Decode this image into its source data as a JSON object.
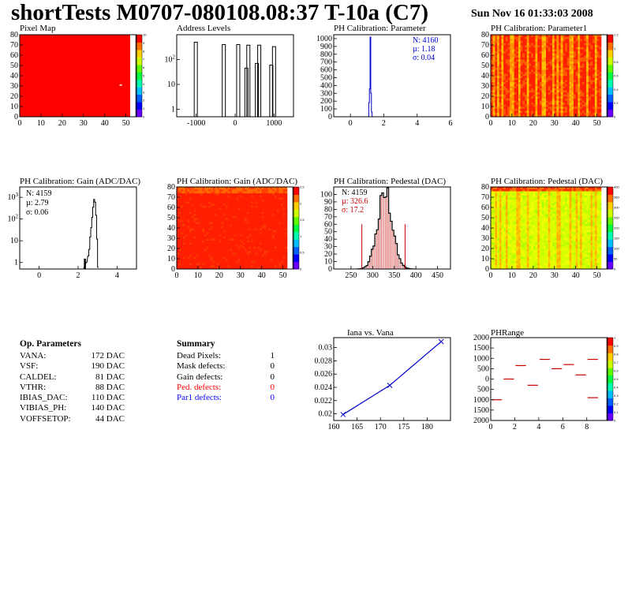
{
  "header": {
    "title": "shortTests M0707-080108.08:37 T-10a (C7)",
    "date": "Sun Nov 16 01:33:03 2008"
  },
  "chart_data": [
    {
      "id": "pixel-map",
      "type": "heatmap",
      "title": "Pixel Map",
      "xlim": [
        0,
        52
      ],
      "ylim": [
        0,
        80
      ],
      "x_ticks": [
        0,
        10,
        20,
        30,
        40,
        50
      ],
      "y_ticks": [
        0,
        10,
        20,
        30,
        40,
        50,
        60,
        70,
        80
      ],
      "uniform_value": 10,
      "z_range": [
        0,
        10
      ],
      "palette": [
        "#6a00ff",
        "#0000ff",
        "#0060ff",
        "#00c0ff",
        "#00ffb0",
        "#00ff40",
        "#60ff00",
        "#d0ff00",
        "#ffd000",
        "#ff7000",
        "#ff0000"
      ],
      "scale_labels": [
        "0",
        "1",
        "2",
        "3",
        "4",
        "5",
        "6",
        "7",
        "8",
        "9",
        "10"
      ],
      "notes": "entire matrix filled red (value 10); one white pixel at ~(47,31)"
    },
    {
      "id": "address-levels",
      "type": "bar",
      "title": "Address Levels",
      "log_y": true,
      "xlim": [
        -1500,
        1500
      ],
      "x_ticks": [
        -1000,
        0,
        1000
      ],
      "y_ticks": [
        1,
        10,
        100
      ],
      "y_tick_labels": [
        "1",
        "10",
        "10^2"
      ],
      "peaks": [
        {
          "x": -1010,
          "value": 500
        },
        {
          "x": -290,
          "value": 400
        },
        {
          "x": 80,
          "value": 400
        },
        {
          "x": 290,
          "value": 45
        },
        {
          "x": 340,
          "value": 380
        },
        {
          "x": 560,
          "value": 70
        },
        {
          "x": 620,
          "value": 380
        },
        {
          "x": 930,
          "value": 60
        },
        {
          "x": 1000,
          "value": 330
        }
      ]
    },
    {
      "id": "ph-cal-parameter",
      "type": "bar",
      "title": "PH Calibration: Parameter",
      "xlim": [
        -1,
        6
      ],
      "ylim": [
        0,
        1050
      ],
      "x_ticks": [
        0,
        2,
        4,
        6
      ],
      "y_ticks": [
        0,
        100,
        200,
        300,
        400,
        500,
        600,
        700,
        800,
        900,
        1000
      ],
      "peak": {
        "mean": 1.18,
        "max": 1020
      },
      "stats": {
        "n": "N: 4160",
        "mu": "µ: 1.18",
        "sigma": "σ: 0.04"
      },
      "series_color": "#0000cc"
    },
    {
      "id": "ph-cal-parameter1",
      "type": "heatmap",
      "title": "PH Calibration: Parameter1",
      "xlim": [
        0,
        52
      ],
      "ylim": [
        0,
        80
      ],
      "x_ticks": [
        0,
        10,
        20,
        30,
        40,
        50
      ],
      "y_ticks": [
        0,
        10,
        20,
        30,
        40,
        50,
        60,
        70,
        80
      ],
      "scale_labels": [
        "0",
        "0.2",
        "0.4",
        "0.6",
        "0.8",
        "1",
        "1.2"
      ],
      "dominant": "red-orange with yellow/orange column stripes"
    },
    {
      "id": "ph-cal-gain-1d",
      "type": "bar",
      "title": "PH Calibration: Gain (ADC/DAC)",
      "log_y": true,
      "xlim": [
        -1,
        5
      ],
      "x_ticks": [
        0,
        2,
        4
      ],
      "y_ticks": [
        1,
        10,
        100,
        1000
      ],
      "y_tick_labels": [
        "1",
        "10",
        "10^2",
        "10^3"
      ],
      "peak": {
        "mean": 2.79,
        "max": 800
      },
      "stats": {
        "n": "N: 4159",
        "mu": "µ: 2.79",
        "sigma": "σ: 0.06"
      },
      "series_color": "#000000"
    },
    {
      "id": "ph-cal-gain-2d",
      "type": "heatmap",
      "title": "PH Calibration: Gain (ADC/DAC)",
      "xlim": [
        0,
        52
      ],
      "ylim": [
        0,
        80
      ],
      "x_ticks": [
        0,
        10,
        20,
        30,
        40,
        50
      ],
      "y_ticks": [
        0,
        10,
        20,
        30,
        40,
        50,
        60,
        70,
        80
      ],
      "scale_labels": [
        "0",
        "0.5",
        "1",
        "1.5",
        "2",
        "2.5"
      ],
      "dominant": "red with orange top rows"
    },
    {
      "id": "ph-cal-pedestal-1d",
      "type": "bar",
      "title": "PH Calibration: Pedestal (DAC)",
      "xlim": [
        210,
        480
      ],
      "ylim": [
        0,
        110
      ],
      "x_ticks": [
        250,
        300,
        350,
        400,
        450
      ],
      "y_ticks": [
        0,
        10,
        20,
        30,
        40,
        50,
        60,
        70,
        80,
        90,
        100
      ],
      "peak": {
        "mean": 326.6,
        "sigma": 17.2,
        "max": 102
      },
      "cut_lines": [
        275,
        375
      ],
      "stats": {
        "n": "N: 4159",
        "mu": "µ: 326.6",
        "sigma": "σ: 17.2"
      },
      "series_color": "#000000",
      "highlight_color": "#cc0000"
    },
    {
      "id": "ph-cal-pedestal-2d",
      "type": "heatmap",
      "title": "PH Calibration: Pedestal (DAC)",
      "xlim": [
        0,
        52
      ],
      "ylim": [
        0,
        80
      ],
      "x_ticks": [
        0,
        10,
        20,
        30,
        40,
        50
      ],
      "y_ticks": [
        0,
        10,
        20,
        30,
        40,
        50,
        60,
        70,
        80
      ],
      "scale_labels": [
        "0",
        "50",
        "100",
        "150",
        "200",
        "250",
        "300",
        "350",
        "400"
      ],
      "dominant": "yellow-green with orange column stripes, red top rows"
    },
    {
      "id": "iana-vs-vana",
      "type": "line",
      "title": "Iana vs. Vana",
      "xlim": [
        160,
        185
      ],
      "ylim": [
        0.019,
        0.0315
      ],
      "x_ticks": [
        160,
        165,
        170,
        175,
        180
      ],
      "y_ticks": [
        0.02,
        0.022,
        0.024,
        0.026,
        0.028,
        0.03
      ],
      "x": [
        162,
        172,
        183
      ],
      "y": [
        0.0199,
        0.0243,
        0.0309
      ],
      "series_color": "#0000cc"
    },
    {
      "id": "ph-range",
      "type": "scatter",
      "title": "PHRange",
      "xlim": [
        0,
        9.2
      ],
      "ylim": [
        -2000,
        2000
      ],
      "x_ticks": [
        0,
        2,
        4,
        6,
        8
      ],
      "y_ticks": [
        -2000,
        -1500,
        -1000,
        -500,
        0,
        500,
        1000,
        1500,
        2000
      ],
      "y_tick_labels": [
        "2000",
        "1500",
        "1000",
        "500",
        "0",
        "500",
        "1000",
        "1500",
        "2000"
      ],
      "segments": [
        {
          "x": 0,
          "value": -1000
        },
        {
          "x": 1,
          "value": 0
        },
        {
          "x": 2,
          "value": 650
        },
        {
          "x": 3,
          "value": -300
        },
        {
          "x": 4,
          "value": 950
        },
        {
          "x": 5,
          "value": 500
        },
        {
          "x": 6,
          "value": 700
        },
        {
          "x": 7,
          "value": 200
        },
        {
          "x": 8,
          "value": 950
        },
        {
          "x": 8,
          "value": -900
        }
      ],
      "series_color": "#cc0000",
      "scale_labels": [
        "0",
        "0.1",
        "0.2",
        "0.3",
        "0.4",
        "0.5",
        "0.6",
        "0.7",
        "0.8",
        "0.9",
        "1"
      ]
    }
  ],
  "op_parameters": {
    "title": "Op. Parameters",
    "rows": [
      {
        "key": "VANA:",
        "value": "172 DAC"
      },
      {
        "key": "VSF:",
        "value": "190 DAC"
      },
      {
        "key": "CALDEL:",
        "value": "81 DAC"
      },
      {
        "key": "VTHR:",
        "value": "88 DAC"
      },
      {
        "key": "IBIAS_DAC:",
        "value": "110 DAC"
      },
      {
        "key": "VIBIAS_PH:",
        "value": "140 DAC"
      },
      {
        "key": "VOFFSETOP:",
        "value": "44 DAC"
      }
    ]
  },
  "summary": {
    "title": "Summary",
    "rows": [
      {
        "key": "Dead Pixels:",
        "value": "1",
        "color": "#000000"
      },
      {
        "key": "Mask defects:",
        "value": "0",
        "color": "#000000"
      },
      {
        "key": "Gain defects:",
        "value": "0",
        "color": "#000000"
      },
      {
        "key": "Ped. defects:",
        "value": "0",
        "color": "#ff0000"
      },
      {
        "key": "Par1 defects:",
        "value": "0",
        "color": "#0000ff"
      }
    ]
  }
}
